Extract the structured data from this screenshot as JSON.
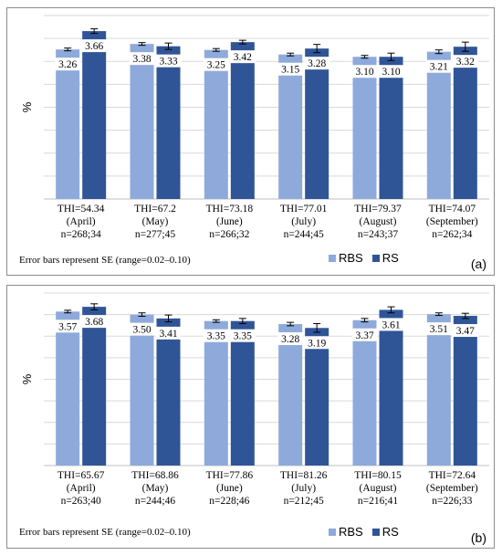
{
  "colors": {
    "rbs": "#8eaadb",
    "rs": "#2f5597",
    "grid": "#d9d9d9",
    "axis": "#bfbfbf"
  },
  "legend": {
    "rbs": "RBS",
    "rs": "RS"
  },
  "chart_data": [
    {
      "panel": "(a)",
      "type": "bar",
      "ylabel": "%",
      "ylim": [
        0,
        4
      ],
      "grid": true,
      "legend_position": "bottom-right",
      "note": "Error bars represent SE (range=0.02–0.10)",
      "categories": [
        [
          "THI=54.34",
          "(April)",
          "n=268;34"
        ],
        [
          "THI=67.2",
          "(May)",
          "n=277;45"
        ],
        [
          "THI=73.18",
          "(June)",
          "n=266;32"
        ],
        [
          "THI=77.01",
          "(July)",
          "n=244;45"
        ],
        [
          "THI=79.37",
          "(August)",
          "n=243;37"
        ],
        [
          "THI=74.07",
          "(September)",
          "n=262;34"
        ]
      ],
      "series": [
        {
          "name": "RBS",
          "values": [
            3.26,
            3.38,
            3.25,
            3.15,
            3.1,
            3.21
          ],
          "se": [
            0.03,
            0.03,
            0.03,
            0.03,
            0.03,
            0.04
          ]
        },
        {
          "name": "RS",
          "values": [
            3.66,
            3.33,
            3.42,
            3.28,
            3.1,
            3.32
          ],
          "se": [
            0.05,
            0.07,
            0.04,
            0.09,
            0.08,
            0.1
          ]
        }
      ],
      "value_labels": [
        [
          "3.26",
          "3.38",
          "3.25",
          "3.15",
          "3.10",
          "3.21"
        ],
        [
          "3.66",
          "3.33",
          "3.42",
          "3.28",
          "3.10",
          "3.32"
        ]
      ]
    },
    {
      "panel": "(b)",
      "type": "bar",
      "ylabel": "%",
      "ylim": [
        0,
        4
      ],
      "grid": true,
      "legend_position": "bottom-right",
      "note": "Error bars represent SE (range=0.02–0.10)",
      "categories": [
        [
          "THI=65.67",
          "(April)",
          "n=263;40"
        ],
        [
          "THI=68.86",
          "(May)",
          "n=244;46"
        ],
        [
          "THI=77.86",
          "(June)",
          "n=228;46"
        ],
        [
          "THI=81.26",
          "(July)",
          "n=212;45"
        ],
        [
          "THI=80.15",
          "(August)",
          "n=216;41"
        ],
        [
          "THI=72.64",
          "(September)",
          "n=226;33"
        ]
      ],
      "series": [
        {
          "name": "RBS",
          "values": [
            3.57,
            3.5,
            3.35,
            3.28,
            3.37,
            3.51
          ],
          "se": [
            0.03,
            0.04,
            0.03,
            0.04,
            0.04,
            0.03
          ]
        },
        {
          "name": "RS",
          "values": [
            3.68,
            3.41,
            3.35,
            3.19,
            3.61,
            3.47
          ],
          "se": [
            0.07,
            0.08,
            0.06,
            0.1,
            0.07,
            0.06
          ]
        }
      ],
      "value_labels": [
        [
          "3.57",
          "3.50",
          "3.35",
          "3.28",
          "3.37",
          "3.51"
        ],
        [
          "3.68",
          "3.41",
          "3.35",
          "3.19",
          "3.61",
          "3.47"
        ]
      ]
    }
  ]
}
